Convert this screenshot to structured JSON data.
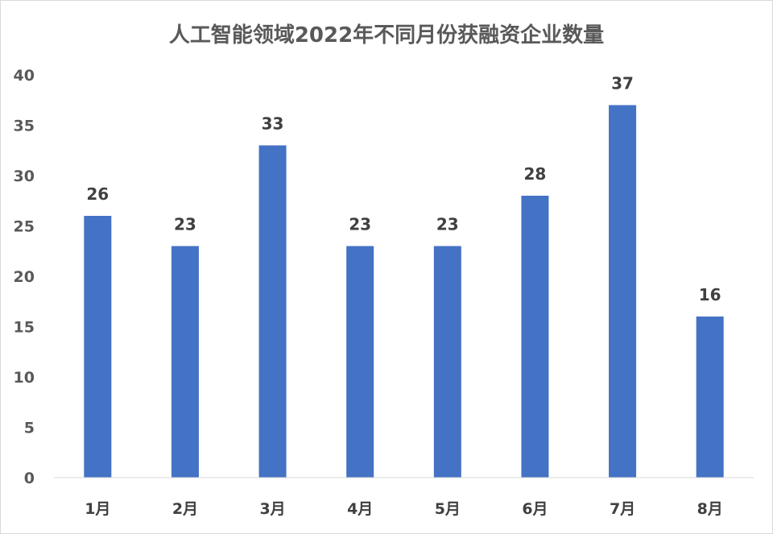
{
  "chart_data": {
    "type": "bar",
    "title": "人工智能领域2022年不同月份获融资企业数量",
    "categories": [
      "1月",
      "2月",
      "3月",
      "4月",
      "5月",
      "6月",
      "7月",
      "8月"
    ],
    "values": [
      26,
      23,
      33,
      23,
      23,
      28,
      37,
      16
    ],
    "ylim": [
      0,
      40
    ],
    "yticks": [
      0,
      5,
      10,
      15,
      20,
      25,
      30,
      35,
      40
    ],
    "xlabel": "",
    "ylabel": "",
    "grid": false,
    "legend": "none",
    "data_labels": true,
    "colors": {
      "bar": "#4472C4",
      "axis": "#D9D9D9",
      "text": "#595959",
      "label": "#404040"
    }
  }
}
